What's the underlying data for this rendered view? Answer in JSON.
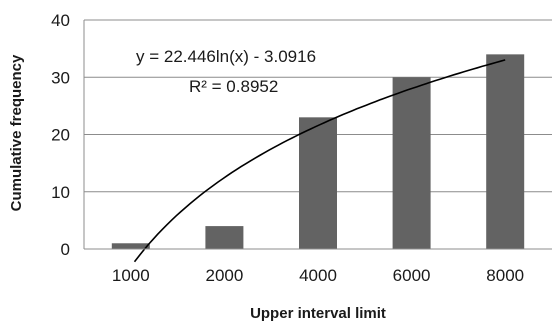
{
  "chart_data": {
    "type": "bar",
    "categories": [
      "1000",
      "2000",
      "4000",
      "6000",
      "8000"
    ],
    "values": [
      1,
      4,
      23,
      30,
      34
    ],
    "xlabel": "Upper interval limit",
    "ylabel": "Cumulative frequency",
    "ylim": [
      0,
      40
    ],
    "yticks": [
      "0",
      "10",
      "20",
      "30",
      "40"
    ],
    "grid": true,
    "bar_color": "#636363",
    "trendline": {
      "type": "logarithmic",
      "a": 22.446,
      "b": -3.0916,
      "equation": "y = 22.446ln(x) - 3.0916",
      "r_squared": "R² = 0.8952"
    }
  }
}
